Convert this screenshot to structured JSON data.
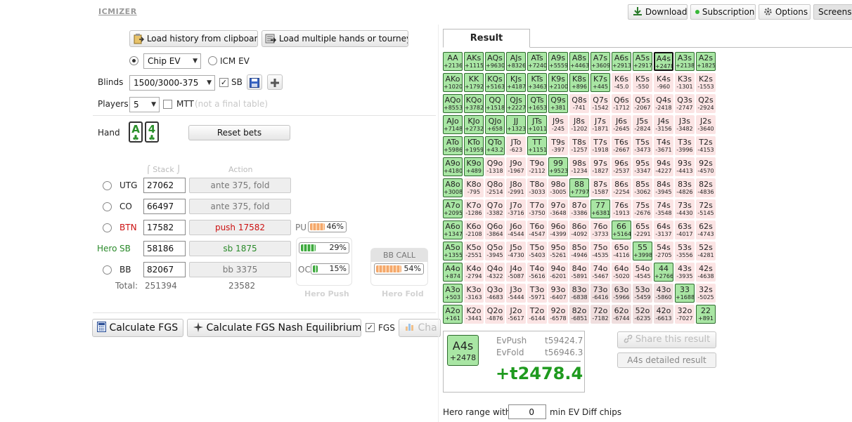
{
  "app": {
    "logo": "ICMIZER"
  },
  "topbar": {
    "download": "Download",
    "subscription": "Subscription",
    "options": "Options",
    "screenshot": "Screensh"
  },
  "loaders": {
    "clipboard": "Load history from clipboard",
    "multiple": "Load multiple hands or tourney"
  },
  "mode": {
    "chip_ev": "Chip EV",
    "icm_ev": "ICM EV",
    "selected": "Chip EV"
  },
  "blinds": {
    "label": "Blinds",
    "value": "1500/3000-375",
    "sb_label": "SB"
  },
  "players": {
    "label": "Players",
    "value": "5",
    "mtt_label": "MTT",
    "mtt_note": "(not a final table)"
  },
  "hand": {
    "label": "Hand",
    "card1_rank": "A",
    "card2_rank": "4",
    "suit": "♣",
    "reset": "Reset bets"
  },
  "table": {
    "stack_header": "Stack",
    "action_header": "Action",
    "rows": [
      {
        "pos": "UTG",
        "stack": "27062",
        "action": "ante 375, fold"
      },
      {
        "pos": "CO",
        "stack": "66497",
        "action": "ante 375, fold"
      },
      {
        "pos": "BTN",
        "stack": "17582",
        "action": "push 17582"
      },
      {
        "hero": "Hero",
        "pos": "SB",
        "stack": "58186",
        "action": "sb 1875"
      },
      {
        "pos": "BB",
        "stack": "82067",
        "action": "bb 3375"
      }
    ],
    "total_label": "Total:",
    "total_stack": "251394",
    "total_action": "23582"
  },
  "ranges": {
    "pu_label": "PU",
    "pu_value": "46%",
    "pu_fraction": 0.46,
    "sb_value": "29%",
    "sb_fraction": 0.29,
    "oc_label": "OC",
    "oc_value": "15%",
    "oc_fraction": 0.15,
    "bbcall_label": "BB CALL",
    "bbcall_value": "54%",
    "bbcall_fraction": 0.54,
    "hero_push": "Hero Push",
    "hero_fold": "Hero Fold"
  },
  "calc": {
    "fgs": "Calculate FGS",
    "nash": "Calculate FGS Nash Equilibrium",
    "fgs_check": "FGS",
    "chart": "Cha"
  },
  "result": {
    "tab": "Result",
    "hand": "A4s",
    "hand_ev": "+2478",
    "evpush_label": "EvPush",
    "evpush_value": "t59424.7",
    "evfold_label": "EvFold",
    "evfold_value": "t56946.3",
    "diff": "+t2478.4",
    "share": "Share this result",
    "detailed": "A4s detailed result",
    "hero_range_label": "Hero range with",
    "hero_range_value": "0",
    "hero_range_suffix": "min EV Diff chips"
  },
  "grid": [
    [
      [
        "AA",
        "+2136",
        "p"
      ],
      [
        "AKs",
        "+1115",
        "p"
      ],
      [
        "AQs",
        "+9630",
        "p"
      ],
      [
        "AJs",
        "+8326",
        "p"
      ],
      [
        "ATs",
        "+7240",
        "p"
      ],
      [
        "A9s",
        "+5559",
        "p"
      ],
      [
        "A8s",
        "+4463",
        "p"
      ],
      [
        "A7s",
        "+3609",
        "p"
      ],
      [
        "A6s",
        "+2913",
        "p"
      ],
      [
        "A5s",
        "+2917",
        "p"
      ],
      [
        "A4s",
        "+2478",
        "s"
      ],
      [
        "A3s",
        "+2138",
        "p"
      ],
      [
        "A2s",
        "+1825",
        "p"
      ]
    ],
    [
      [
        "AKo",
        "+1020",
        "p"
      ],
      [
        "KK",
        "+1792",
        "p"
      ],
      [
        "KQs",
        "+5163",
        "p"
      ],
      [
        "KJs",
        "+4187",
        "p"
      ],
      [
        "KTs",
        "+3463",
        "p"
      ],
      [
        "K9s",
        "+2100",
        "p"
      ],
      [
        "K8s",
        "+896",
        "p"
      ],
      [
        "K7s",
        "+445",
        "p"
      ],
      [
        "K6s",
        "-45.0",
        "n"
      ],
      [
        "K5s",
        "-550",
        "n"
      ],
      [
        "K4s",
        "-960",
        "n"
      ],
      [
        "K3s",
        "-1301",
        "n"
      ],
      [
        "K2s",
        "-1553",
        "n"
      ]
    ],
    [
      [
        "AQo",
        "+8553",
        "p"
      ],
      [
        "KQo",
        "+3782",
        "p"
      ],
      [
        "QQ",
        "+1518",
        "p"
      ],
      [
        "QJs",
        "+2227",
        "p"
      ],
      [
        "QTs",
        "+1653",
        "p"
      ],
      [
        "Q9s",
        "+381",
        "p"
      ],
      [
        "Q8s",
        "-741",
        "n"
      ],
      [
        "Q7s",
        "-1542",
        "n"
      ],
      [
        "Q6s",
        "-1712",
        "n"
      ],
      [
        "Q5s",
        "-2067",
        "n"
      ],
      [
        "Q4s",
        "-2418",
        "n"
      ],
      [
        "Q3s",
        "-2747",
        "n"
      ],
      [
        "Q2s",
        "-2924",
        "n"
      ]
    ],
    [
      [
        "AJo",
        "+7148",
        "p"
      ],
      [
        "KJo",
        "+2732",
        "p"
      ],
      [
        "QJo",
        "+658",
        "p"
      ],
      [
        "JJ",
        "+1323",
        "p"
      ],
      [
        "JTs",
        "+1011",
        "p"
      ],
      [
        "J9s",
        "-245",
        "n"
      ],
      [
        "J8s",
        "-1202",
        "n"
      ],
      [
        "J7s",
        "-1871",
        "n"
      ],
      [
        "J6s",
        "-2645",
        "n"
      ],
      [
        "J5s",
        "-2824",
        "n"
      ],
      [
        "J4s",
        "-3156",
        "n"
      ],
      [
        "J3s",
        "-3482",
        "n"
      ],
      [
        "J2s",
        "-3640",
        "n"
      ]
    ],
    [
      [
        "ATo",
        "+5986",
        "p"
      ],
      [
        "KTo",
        "+1959",
        "p"
      ],
      [
        "QTo",
        "+43.2",
        "p"
      ],
      [
        "JTo",
        "-623",
        "n"
      ],
      [
        "TT",
        "+1151",
        "p"
      ],
      [
        "T9s",
        "-397",
        "n"
      ],
      [
        "T8s",
        "-1257",
        "n"
      ],
      [
        "T7s",
        "-1918",
        "n"
      ],
      [
        "T6s",
        "-2667",
        "n"
      ],
      [
        "T5s",
        "-3473",
        "n"
      ],
      [
        "T4s",
        "-3671",
        "n"
      ],
      [
        "T3s",
        "-3996",
        "n"
      ],
      [
        "T2s",
        "-4153",
        "n"
      ]
    ],
    [
      [
        "A9o",
        "+4180",
        "p"
      ],
      [
        "K9o",
        "+489",
        "p"
      ],
      [
        "Q9o",
        "-1318",
        "n"
      ],
      [
        "J9o",
        "-1967",
        "n"
      ],
      [
        "T9o",
        "-2112",
        "n"
      ],
      [
        "99",
        "+9523",
        "p"
      ],
      [
        "98s",
        "-1234",
        "n"
      ],
      [
        "97s",
        "-1827",
        "n"
      ],
      [
        "96s",
        "-2537",
        "n"
      ],
      [
        "95s",
        "-3347",
        "n"
      ],
      [
        "94s",
        "-4227",
        "n"
      ],
      [
        "93s",
        "-4413",
        "n"
      ],
      [
        "92s",
        "-4570",
        "n"
      ]
    ],
    [
      [
        "A8o",
        "+3008",
        "p"
      ],
      [
        "K8o",
        "-795",
        "n"
      ],
      [
        "Q8o",
        "-2514",
        "n"
      ],
      [
        "J8o",
        "-2991",
        "n"
      ],
      [
        "T8o",
        "-3033",
        "n"
      ],
      [
        "98o",
        "-3005",
        "n"
      ],
      [
        "88",
        "+7797",
        "p"
      ],
      [
        "87s",
        "-1587",
        "n"
      ],
      [
        "86s",
        "-2254",
        "n"
      ],
      [
        "85s",
        "-3062",
        "n"
      ],
      [
        "84s",
        "-3945",
        "n"
      ],
      [
        "83s",
        "-4826",
        "n"
      ],
      [
        "82s",
        "-4836",
        "n"
      ]
    ],
    [
      [
        "A7o",
        "+2095",
        "p"
      ],
      [
        "K7o",
        "-1286",
        "n"
      ],
      [
        "Q7o",
        "-3382",
        "n"
      ],
      [
        "J7o",
        "-3716",
        "n"
      ],
      [
        "T7o",
        "-3750",
        "n"
      ],
      [
        "97o",
        "-3648",
        "n"
      ],
      [
        "87o",
        "-3386",
        "n"
      ],
      [
        "77",
        "+6381",
        "p"
      ],
      [
        "76s",
        "-1913",
        "n"
      ],
      [
        "75s",
        "-2676",
        "n"
      ],
      [
        "74s",
        "-3548",
        "n"
      ],
      [
        "73s",
        "-4430",
        "n"
      ],
      [
        "72s",
        "-5145",
        "n"
      ]
    ],
    [
      [
        "A6o",
        "+1347",
        "p"
      ],
      [
        "K6o",
        "-2108",
        "n"
      ],
      [
        "Q6o",
        "-3864",
        "n"
      ],
      [
        "J6o",
        "-4544",
        "n"
      ],
      [
        "T6o",
        "-4547",
        "n"
      ],
      [
        "96o",
        "-4399",
        "n"
      ],
      [
        "86o",
        "-4092",
        "n"
      ],
      [
        "76o",
        "-3733",
        "n"
      ],
      [
        "66",
        "+5164",
        "p"
      ],
      [
        "65s",
        "-2291",
        "n"
      ],
      [
        "64s",
        "-3137",
        "n"
      ],
      [
        "63s",
        "-4017",
        "n"
      ],
      [
        "62s",
        "-4743",
        "n"
      ]
    ],
    [
      [
        "A5o",
        "+1355",
        "p"
      ],
      [
        "K5o",
        "-2551",
        "n"
      ],
      [
        "Q5o",
        "-3945",
        "n"
      ],
      [
        "J5o",
        "-4730",
        "n"
      ],
      [
        "T5o",
        "-5403",
        "n"
      ],
      [
        "95o",
        "-5261",
        "n"
      ],
      [
        "85o",
        "-4946",
        "n"
      ],
      [
        "75o",
        "-4535",
        "n"
      ],
      [
        "65o",
        "-4116",
        "n"
      ],
      [
        "55",
        "+3998",
        "p"
      ],
      [
        "54s",
        "-2705",
        "n"
      ],
      [
        "53s",
        "-3556",
        "n"
      ],
      [
        "52s",
        "-4281",
        "n"
      ]
    ],
    [
      [
        "A4o",
        "+874",
        "p"
      ],
      [
        "K4o",
        "-2794",
        "n"
      ],
      [
        "Q4o",
        "-4322",
        "n"
      ],
      [
        "J4o",
        "-5087",
        "n"
      ],
      [
        "T4o",
        "-5616",
        "n"
      ],
      [
        "94o",
        "-6201",
        "n"
      ],
      [
        "84o",
        "-5891",
        "n"
      ],
      [
        "74o",
        "-5467",
        "n"
      ],
      [
        "64o",
        "-5020",
        "n"
      ],
      [
        "54o",
        "-4545",
        "n"
      ],
      [
        "44",
        "+2766",
        "p"
      ],
      [
        "43s",
        "-3935",
        "n"
      ],
      [
        "42s",
        "-4638",
        "n"
      ]
    ],
    [
      [
        "A3o",
        "+503",
        "p"
      ],
      [
        "K3o",
        "-3163",
        "n"
      ],
      [
        "Q3o",
        "-4683",
        "n"
      ],
      [
        "J3o",
        "-5444",
        "n"
      ],
      [
        "T3o",
        "-5971",
        "n"
      ],
      [
        "93o",
        "-6407",
        "n"
      ],
      [
        "83o",
        "-6838",
        "m"
      ],
      [
        "73o",
        "-6416",
        "m"
      ],
      [
        "63o",
        "-5966",
        "m"
      ],
      [
        "53o",
        "-5459",
        "m"
      ],
      [
        "43o",
        "-5860",
        "m"
      ],
      [
        "33",
        "+1688",
        "p"
      ],
      [
        "32s",
        "-5025",
        "n"
      ]
    ],
    [
      [
        "A2o",
        "+161",
        "p"
      ],
      [
        "K2o",
        "-3441",
        "n"
      ],
      [
        "Q2o",
        "-4876",
        "n"
      ],
      [
        "J2o",
        "-5617",
        "n"
      ],
      [
        "T2o",
        "-6144",
        "n"
      ],
      [
        "92o",
        "-6578",
        "n"
      ],
      [
        "82o",
        "-6851",
        "m"
      ],
      [
        "72o",
        "-7182",
        "m"
      ],
      [
        "62o",
        "-6744",
        "m"
      ],
      [
        "52o",
        "-6235",
        "m"
      ],
      [
        "42o",
        "-6613",
        "m"
      ],
      [
        "32o",
        "-7027",
        "n"
      ],
      [
        "22",
        "+891",
        "p"
      ]
    ]
  ]
}
